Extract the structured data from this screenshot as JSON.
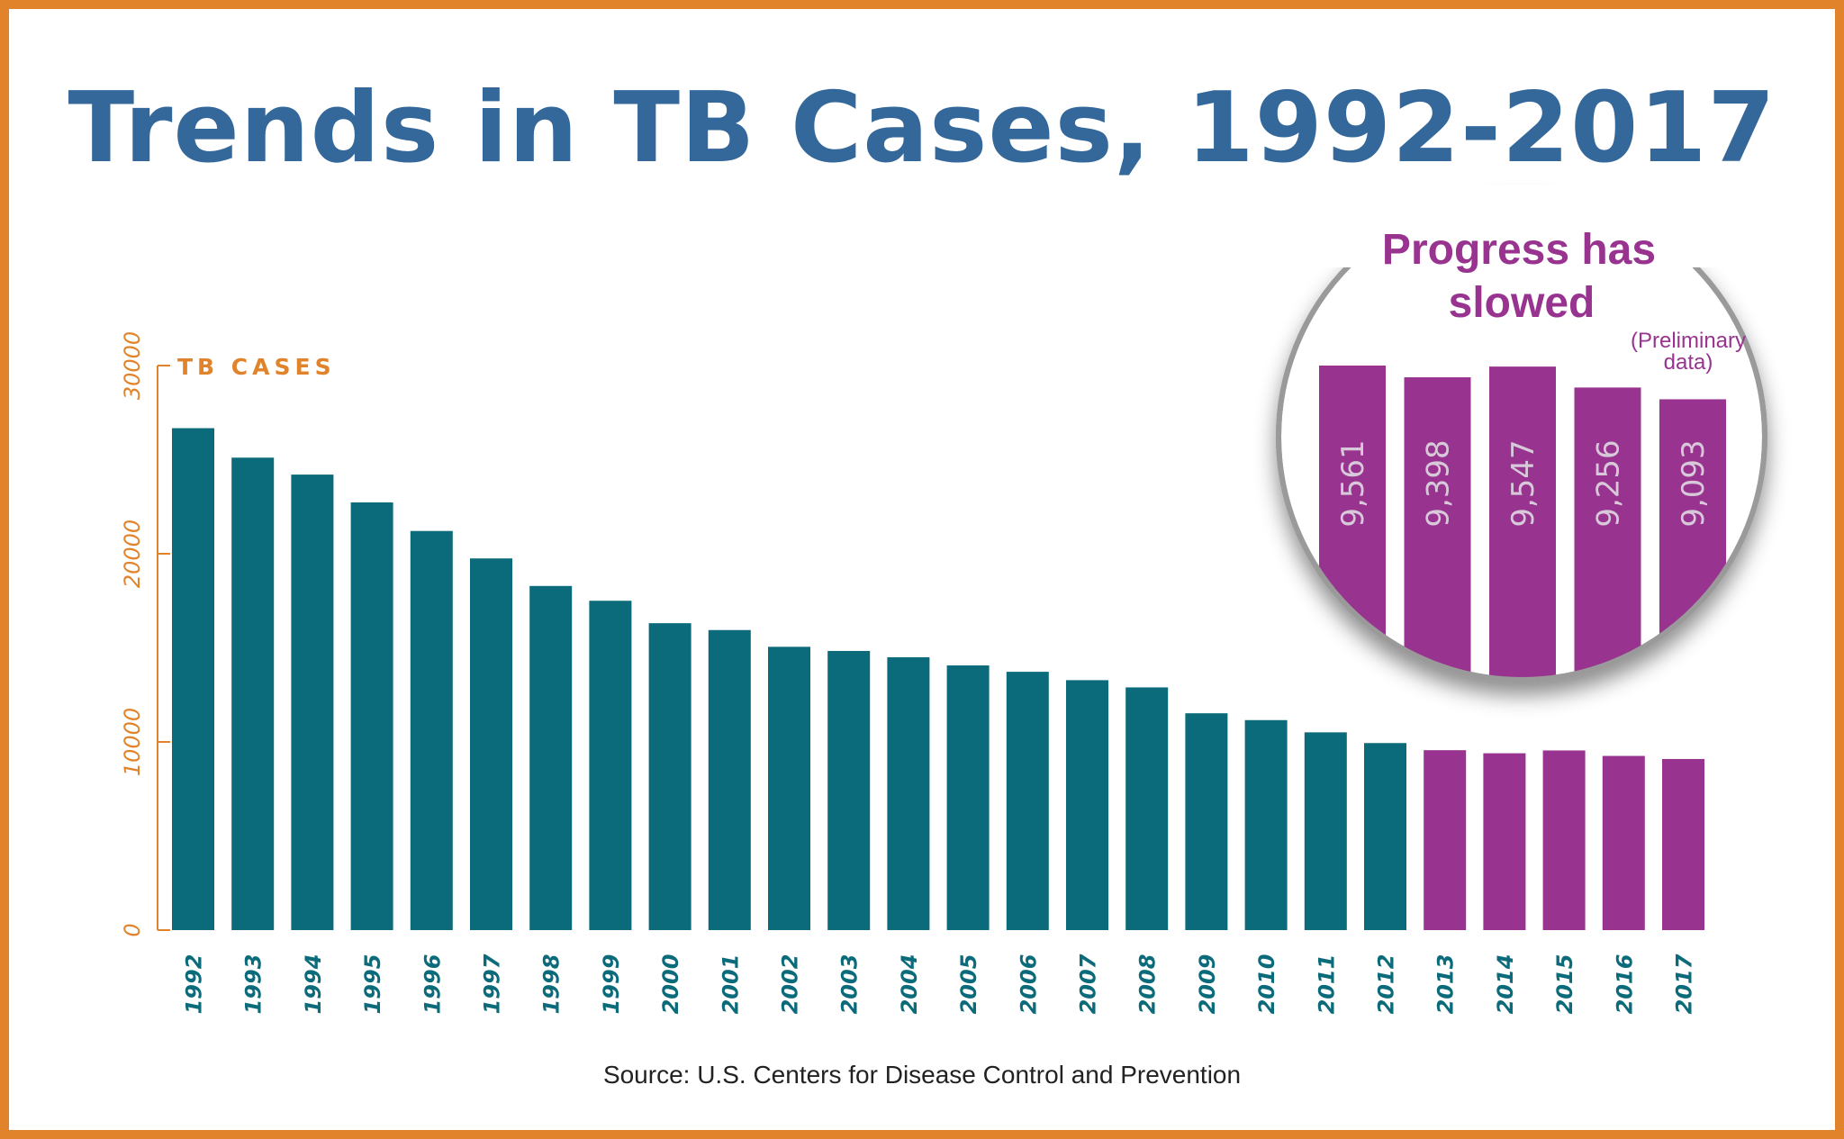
{
  "title": "Trends in TB Cases, 1992-2017",
  "source": "Source: U.S. Centers for Disease Control and Prevention",
  "colors": {
    "border": "#e0832b",
    "title": "#35689a",
    "bar_early": "#0b6b7a",
    "bar_recent": "#98348f",
    "axis": "#e0832b",
    "inset_text": "#98348f"
  },
  "chart_data": {
    "type": "bar",
    "ylabel": "TB CASES",
    "ylim": [
      0,
      30000
    ],
    "yticks": [
      "0",
      "10000",
      "20000",
      "30000"
    ],
    "categories": [
      "1992",
      "1993",
      "1994",
      "1995",
      "1996",
      "1997",
      "1998",
      "1999",
      "2000",
      "2001",
      "2002",
      "2003",
      "2004",
      "2005",
      "2006",
      "2007",
      "2008",
      "2009",
      "2010",
      "2011",
      "2012",
      "2013",
      "2014",
      "2015",
      "2016",
      "2017"
    ],
    "values": [
      26673,
      25107,
      24206,
      22727,
      21210,
      19751,
      18287,
      17501,
      16309,
      15945,
      15055,
      14835,
      14499,
      14065,
      13727,
      13282,
      12898,
      11523,
      11159,
      10509,
      9940,
      9561,
      9398,
      9547,
      9256,
      9093
    ],
    "highlight_from": "2013",
    "inset": {
      "title_line1": "Progress has",
      "title_line2": "slowed",
      "note_line1": "(Preliminary",
      "note_line2": "data)",
      "labels": [
        "9,561",
        "9,398",
        "9,547",
        "9,256",
        "9,093"
      ],
      "values": [
        9561,
        9398,
        9547,
        9256,
        9093
      ]
    }
  }
}
